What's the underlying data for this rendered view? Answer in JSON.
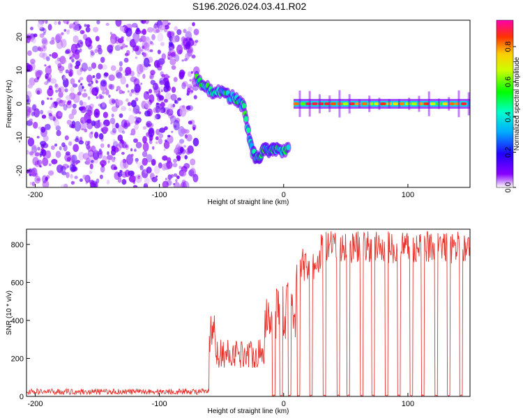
{
  "title": "S196.2026.024.03.41.R02",
  "chart_data": [
    {
      "type": "heatmap",
      "title": "S196.2026.024.03.41.R02",
      "xlabel": "Height of straight line (km)",
      "ylabel": "Frequency (Hz)",
      "xlim": [
        -207,
        150
      ],
      "ylim": [
        -25,
        25
      ],
      "xticks": [
        -200,
        -100,
        0,
        100
      ],
      "yticks": [
        -20,
        -10,
        0,
        10,
        20
      ],
      "colorbar": {
        "label": "Normalized spectral amplitude",
        "range": [
          0.0,
          0.95
        ],
        "ticks": [
          "0.0",
          "0.2",
          "0.4",
          "0.6",
          "0.8"
        ]
      },
      "features": [
        {
          "name": "noise",
          "x": [
            -207,
            -70
          ],
          "freq": [
            -25,
            25
          ],
          "amplitude": 0.1
        },
        {
          "name": "descending track",
          "points": [
            [
              -70,
              8
            ],
            [
              -60,
              4
            ],
            [
              -50,
              3
            ],
            [
              -40,
              2
            ],
            [
              -32,
              -1
            ],
            [
              -25,
              -15
            ],
            [
              -20,
              -16
            ],
            [
              -15,
              -13
            ],
            [
              -10,
              -14
            ],
            [
              -5,
              -14
            ],
            [
              5,
              -14
            ]
          ],
          "amplitude": 0.45
        },
        {
          "name": "carrier",
          "x": [
            8,
            150
          ],
          "freq": 0,
          "amplitude": 0.8
        }
      ]
    },
    {
      "type": "line",
      "xlabel": "Height of straight line (km)",
      "ylabel": "SNR (10 * v/v)",
      "xlim": [
        -207,
        150
      ],
      "ylim": [
        0,
        880
      ],
      "xticks": [
        -200,
        -100,
        0,
        100
      ],
      "yticks": [
        0,
        200,
        400,
        600,
        800
      ],
      "series": [
        {
          "name": "SNR",
          "color": "#e8322c",
          "segments": [
            {
              "x": [
                -207,
                -60
              ],
              "level": 25,
              "noise": 15
            },
            {
              "x": [
                -60,
                -55
              ],
              "level": 200,
              "peak": 430
            },
            {
              "x": [
                -55,
                -15
              ],
              "level": 150,
              "peak": 300
            },
            {
              "x": [
                -15,
                10
              ],
              "level": 300,
              "peak": 600
            },
            {
              "x": [
                10,
                30
              ],
              "level": 600,
              "peak": 780
            },
            {
              "x": [
                30,
                150
              ],
              "level": 700,
              "peak": 870
            }
          ],
          "dropouts_x": [
            -8,
            -2,
            5,
            12,
            22,
            33,
            44,
            52,
            63,
            72,
            83,
            93,
            103,
            112,
            123,
            133,
            143
          ]
        }
      ]
    }
  ]
}
